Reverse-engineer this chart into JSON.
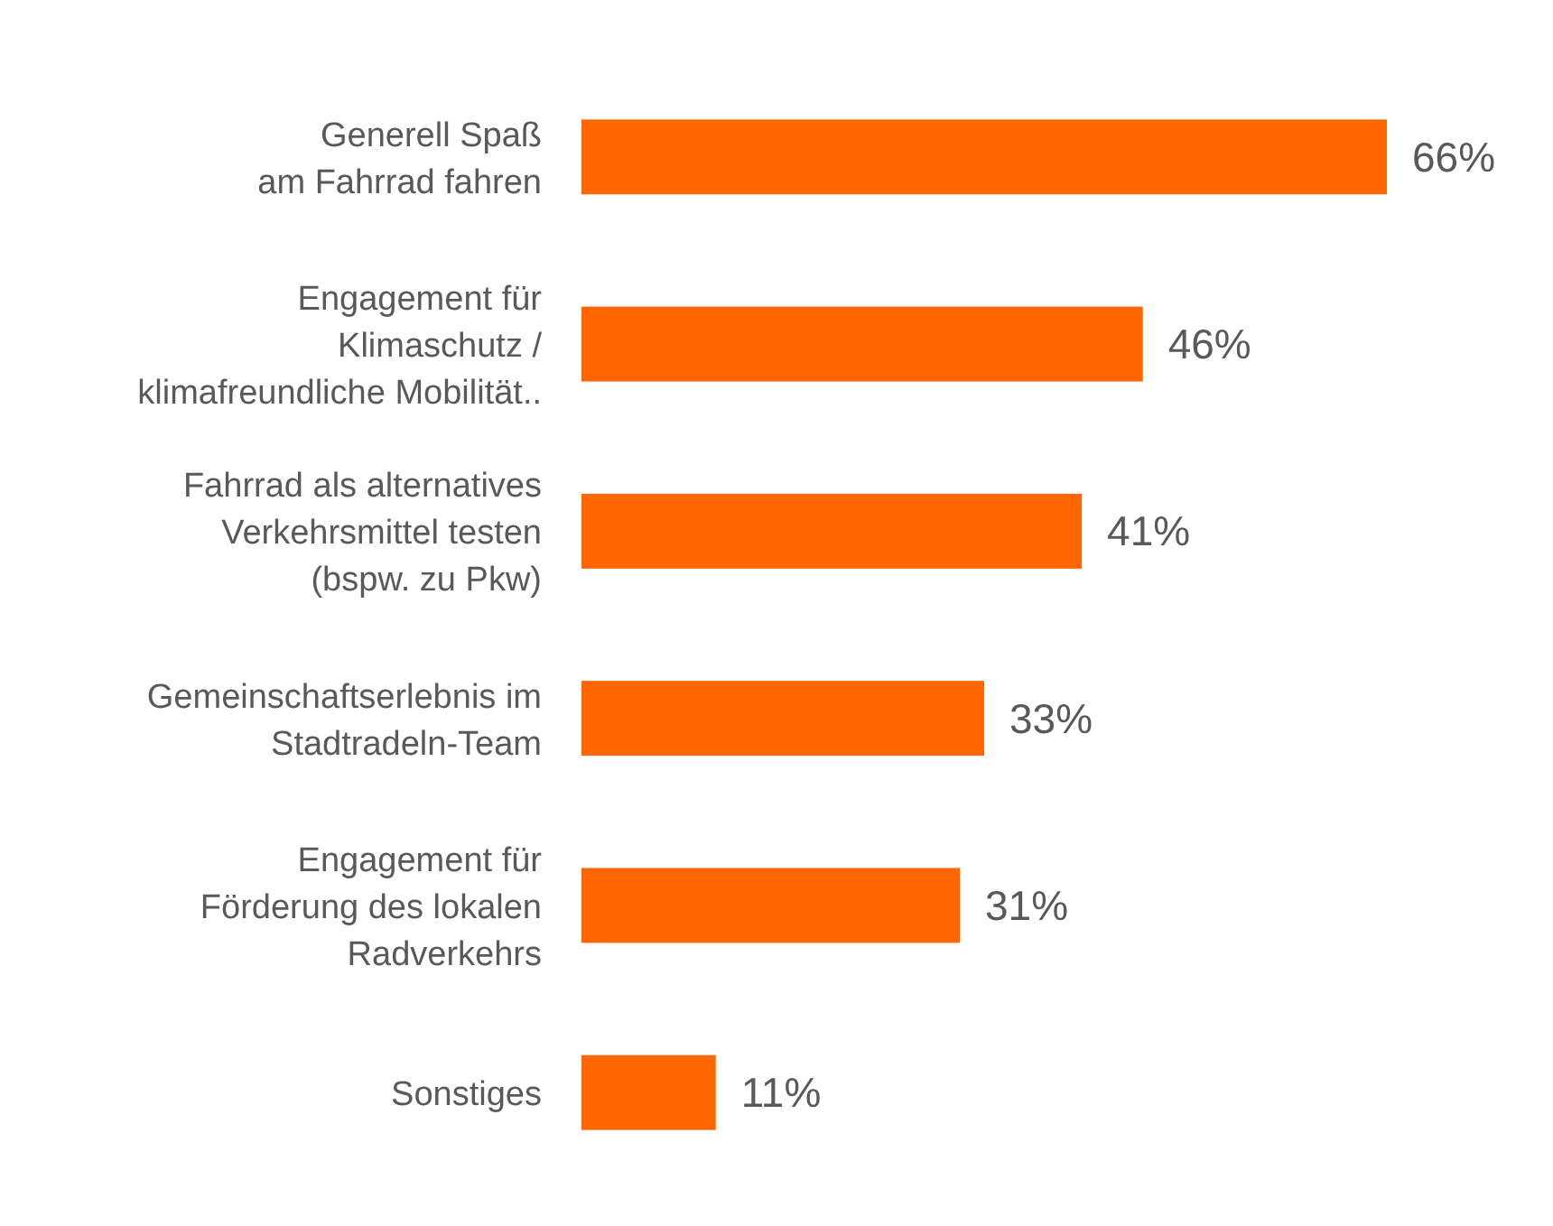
{
  "chart_data": {
    "type": "bar",
    "orientation": "horizontal",
    "categories": [
      "Generell Spaß\nam Fahrrad fahren",
      "Engagement für\nKlimaschutz /\nklimafreundliche Mobilität..",
      "Fahrrad als alternatives\nVerkehrsmittel testen\n(bspw. zu Pkw)",
      "Gemeinschaftserlebnis im\nStadtradeln-Team",
      "Engagement für\nFörderung des lokalen\nRadverkehrs",
      "Sonstiges"
    ],
    "values": [
      66,
      46,
      41,
      33,
      31,
      11
    ],
    "value_labels": [
      "66%",
      "46%",
      "41%",
      "33%",
      "31%",
      "11%"
    ],
    "color": "#ff6600"
  }
}
